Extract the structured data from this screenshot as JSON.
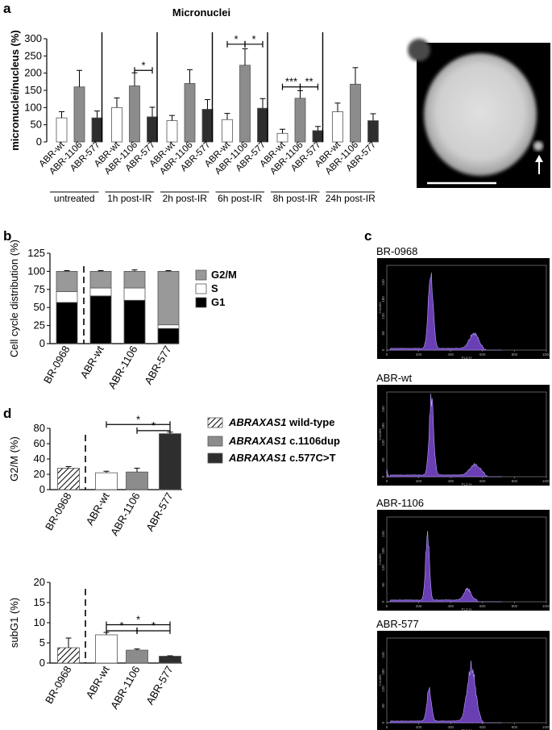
{
  "panels": {
    "a": "a",
    "b": "b",
    "c": "c",
    "d": "d"
  },
  "colors": {
    "white": "#ffffff",
    "mid": "#8c8c8c",
    "dark": "#2e2e2e",
    "hist": "#6a3fb4",
    "hist_edge": "#b9a1ff"
  },
  "legend": [
    {
      "gene": "ABRAXAS1",
      "suffix": " wild-type",
      "fill": "hatch"
    },
    {
      "gene": "ABRAXAS1",
      "suffix": " c.1106dup",
      "fill": "#8c8c8c"
    },
    {
      "gene": "ABRAXAS1",
      "suffix": " c.577C>T",
      "fill": "#2e2e2e"
    }
  ],
  "micrograph": {
    "desc_icon": "up-arrow-icon"
  },
  "chart_data": [
    {
      "id": "a",
      "type": "bar",
      "title": "Micronuclei",
      "ylabel": "micronuclei/nucleus (%)",
      "ylim": [
        0,
        300
      ],
      "yticks": [
        0,
        50,
        100,
        150,
        200,
        250,
        300
      ],
      "bar_labels": [
        "ABR-wt",
        "ABR-1106",
        "ABR-577"
      ],
      "groups": [
        {
          "name": "untreated",
          "values": [
            70,
            160,
            70
          ],
          "errors": [
            18,
            48,
            20
          ],
          "sig": []
        },
        {
          "name": "1h post-IR",
          "values": [
            100,
            163,
            73
          ],
          "errors": [
            28,
            38,
            28
          ],
          "sig": [
            {
              "a": 1,
              "b": 2,
              "label": "*",
              "y": 208
            }
          ]
        },
        {
          "name": "2h post-IR",
          "values": [
            62,
            170,
            95
          ],
          "errors": [
            15,
            40,
            28
          ],
          "sig": []
        },
        {
          "name": "6h post-IR",
          "values": [
            65,
            223,
            98
          ],
          "errors": [
            18,
            48,
            28
          ],
          "sig": [
            {
              "a": 0,
              "b": 1,
              "label": "*",
              "y": 284
            },
            {
              "a": 1,
              "b": 2,
              "label": "*",
              "y": 284
            }
          ]
        },
        {
          "name": "8h post-IR",
          "values": [
            25,
            127,
            33
          ],
          "errors": [
            12,
            22,
            12
          ],
          "sig": [
            {
              "a": 0,
              "b": 1,
              "label": "***",
              "y": 160
            },
            {
              "a": 1,
              "b": 2,
              "label": "**",
              "y": 160
            }
          ]
        },
        {
          "name": "24h post-IR",
          "values": [
            88,
            168,
            62
          ],
          "errors": [
            25,
            48,
            20
          ],
          "sig": []
        }
      ]
    },
    {
      "id": "b",
      "type": "bar",
      "stacked": true,
      "ylabel": "Cell cycle distribution (%)",
      "ylim": [
        0,
        125
      ],
      "yticks": [
        0,
        25,
        50,
        75,
        100,
        125
      ],
      "categories": [
        "BR-0968",
        "ABR-wt",
        "ABR-1106",
        "ABR-577"
      ],
      "series": [
        {
          "name": "G1",
          "values": [
            57,
            66,
            60,
            21
          ],
          "errors": [
            2,
            1,
            3,
            1
          ],
          "color": "#000000"
        },
        {
          "name": "S",
          "values": [
            15,
            11,
            17,
            5
          ],
          "errors": [
            2,
            1,
            1,
            1
          ],
          "color": "#ffffff"
        },
        {
          "name": "G2/M",
          "values": [
            28,
            23,
            23,
            74
          ],
          "errors": [
            1,
            1,
            2,
            1
          ],
          "color": "#999999"
        }
      ]
    },
    {
      "id": "c",
      "type": "area",
      "xlabel": "FL2-H",
      "ylabel": "Counts",
      "xticks": [
        0,
        200,
        400,
        600,
        800,
        1000
      ],
      "yticks": [
        0,
        60,
        120,
        180,
        240
      ],
      "xlim": [
        0,
        1000
      ],
      "ylim": [
        0,
        300
      ],
      "samples": [
        {
          "name": "BR-0968",
          "peaks": [
            {
              "x": 275,
              "h": 268,
              "w": 15
            },
            {
              "x": 545,
              "h": 55,
              "w": 28
            }
          ],
          "spike": 0
        },
        {
          "name": "ABR-wt",
          "peaks": [
            {
              "x": 280,
              "h": 272,
              "w": 14
            },
            {
              "x": 555,
              "h": 38,
              "w": 32
            }
          ],
          "spike": 30
        },
        {
          "name": "ABR-1106",
          "peaks": [
            {
              "x": 255,
              "h": 232,
              "w": 12
            },
            {
              "x": 505,
              "h": 40,
              "w": 22
            }
          ],
          "spike": 0
        },
        {
          "name": "ABR-577",
          "peaks": [
            {
              "x": 265,
              "h": 110,
              "w": 14
            },
            {
              "x": 530,
              "h": 195,
              "w": 26
            }
          ],
          "spike": 0
        }
      ]
    },
    {
      "id": "d1",
      "type": "bar",
      "ylabel": "G2/M (%)",
      "ylim": [
        0,
        80
      ],
      "yticks": [
        0,
        20,
        40,
        60,
        80
      ],
      "categories": [
        "BR-0968",
        "ABR-wt",
        "ABR-1106",
        "ABR-577"
      ],
      "values": [
        28,
        22,
        23,
        73
      ],
      "errors": [
        2,
        2,
        5,
        2
      ],
      "sig": [
        {
          "a": 1,
          "b": 3,
          "label": "*",
          "y": 85
        },
        {
          "a": 2,
          "b": 3,
          "label": "*",
          "y": 77
        }
      ]
    },
    {
      "id": "d2",
      "type": "bar",
      "ylabel": "subG1 (%)",
      "ylim": [
        0,
        20
      ],
      "yticks": [
        0,
        5,
        10,
        15,
        20
      ],
      "categories": [
        "BR-0968",
        "ABR-wt",
        "ABR-1106",
        "ABR-577"
      ],
      "values": [
        3.8,
        7.0,
        3.2,
        1.7
      ],
      "errors": [
        2.4,
        0.6,
        0.3,
        0.1
      ],
      "sig": [
        {
          "a": 1,
          "b": 3,
          "label": "*",
          "y": 9.5
        },
        {
          "a": 1,
          "b": 2,
          "label": "*",
          "y": 8.0
        },
        {
          "a": 2,
          "b": 3,
          "label": "*",
          "y": 8.0
        }
      ]
    }
  ]
}
